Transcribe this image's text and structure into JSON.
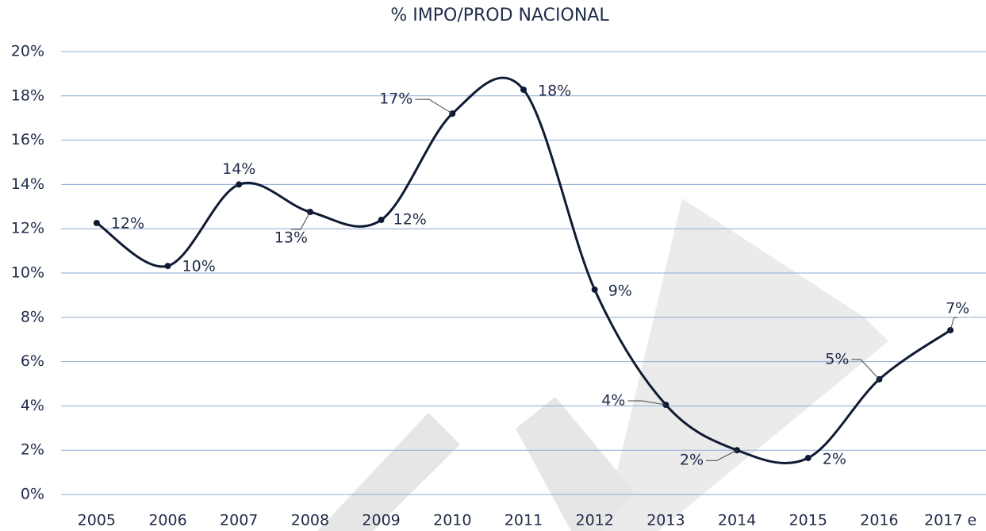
{
  "chart_data": {
    "type": "line",
    "title": "% IMPO/PROD NACIONAL",
    "categories": [
      "2005",
      "2006",
      "2007",
      "2008",
      "2009",
      "2010",
      "2011",
      "2012",
      "2013",
      "2014",
      "2015",
      "2016",
      "2017 e"
    ],
    "series": [
      {
        "color": "#0f1b33",
        "values": [
          12.26,
          10.32,
          14.0,
          12.76,
          12.4,
          17.2,
          18.28,
          9.25,
          4.05,
          2.0,
          1.65,
          5.2,
          7.42
        ],
        "value_labels": [
          "12%",
          "10%",
          "14%",
          "13%",
          "12%",
          "17%",
          "18%",
          "9%",
          "4%",
          "2%",
          "2%",
          "5%",
          "7%"
        ]
      }
    ],
    "ylim": [
      0,
      20
    ],
    "yticks": [
      {
        "value": 0,
        "label": "0%"
      },
      {
        "value": 2,
        "label": "2%"
      },
      {
        "value": 4,
        "label": "4%"
      },
      {
        "value": 6,
        "label": "6%"
      },
      {
        "value": 8,
        "label": "8%"
      },
      {
        "value": 10,
        "label": "10%"
      },
      {
        "value": 12,
        "label": "12%"
      },
      {
        "value": 14,
        "label": "14%"
      },
      {
        "value": 16,
        "label": "16%"
      },
      {
        "value": 18,
        "label": "18%"
      },
      {
        "value": 20,
        "label": "20%"
      }
    ],
    "grid": true
  }
}
